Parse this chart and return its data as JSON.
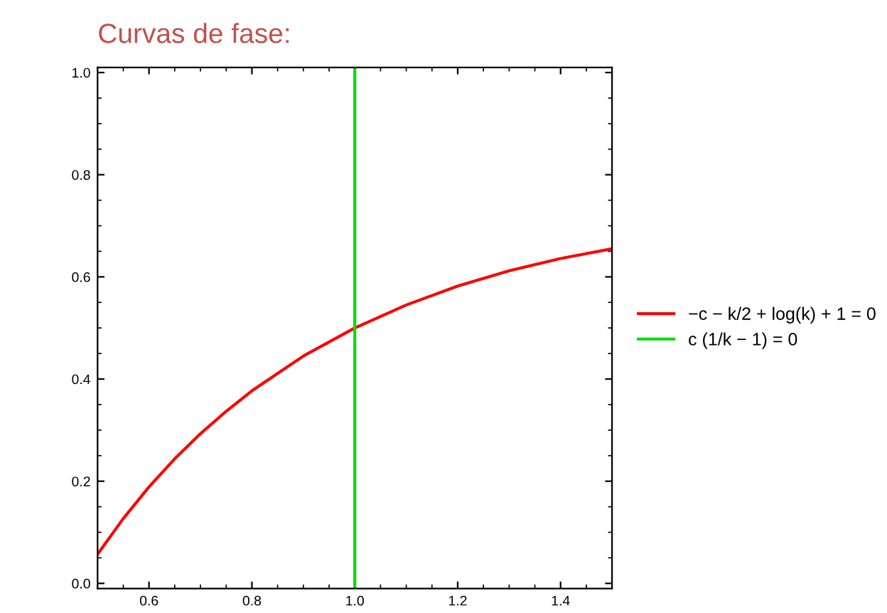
{
  "chart_data": {
    "type": "line",
    "title": "Curvas de fase:",
    "xlim": [
      0.5,
      1.5
    ],
    "ylim": [
      -0.01,
      1.01
    ],
    "xticks": [
      0.6,
      0.8,
      {
        "value": 1,
        "label": "1.0"
      },
      1.2,
      1.4
    ],
    "yticks": [
      {
        "value": 0,
        "label": "0.0"
      },
      0.2,
      0.4,
      0.6,
      0.8,
      {
        "value": 1,
        "label": "1.0"
      }
    ],
    "series": [
      {
        "name": "−c − k/2 + log(k) + 1 = 0",
        "color": "#ff0000",
        "x": [
          0.5,
          0.55,
          0.6,
          0.65,
          0.7,
          0.75,
          0.8,
          0.9,
          1.0,
          1.1,
          1.2,
          1.3,
          1.4,
          1.5
        ],
        "values": [
          0.057,
          0.127,
          0.189,
          0.244,
          0.293,
          0.337,
          0.377,
          0.445,
          0.5,
          0.545,
          0.582,
          0.612,
          0.636,
          0.655
        ]
      },
      {
        "name": "c (1/k − 1) = 0",
        "color": "#00dd00",
        "x": [
          1.0,
          1.0
        ],
        "values": [
          -0.01,
          1.01
        ]
      }
    ],
    "legend": "right",
    "grid": false,
    "marker": "none",
    "line_style": "solid"
  }
}
